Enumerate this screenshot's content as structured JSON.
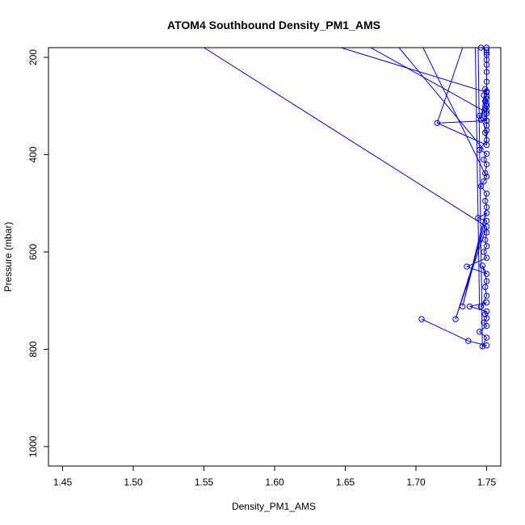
{
  "chart_data": {
    "type": "line",
    "title": "ATOM4 Southbound Density_PM1_AMS",
    "xlabel": "Density_PM1_AMS",
    "ylabel": "Pressure (mbar)",
    "xlim": [
      1.44,
      1.76
    ],
    "ylim": [
      1040,
      180
    ],
    "y_reversed": true,
    "xticks": [
      1.45,
      1.5,
      1.55,
      1.6,
      1.65,
      1.7,
      1.75
    ],
    "xtick_labels": [
      "1.45",
      "1.50",
      "1.55",
      "1.60",
      "1.65",
      "1.70",
      "1.75"
    ],
    "yticks": [
      200,
      400,
      600,
      800,
      1000
    ],
    "ytick_labels": [
      "200",
      "400",
      "600",
      "800",
      "1000"
    ],
    "grid": false,
    "series": [
      {
        "color": "#0000ff",
        "marker": "open-circle",
        "x": [
          1.704,
          1.737,
          1.75,
          1.747,
          1.75,
          1.745,
          1.75,
          1.748,
          1.75,
          1.749,
          1.75,
          1.738,
          1.75,
          1.746,
          1.75,
          1.749,
          1.75,
          1.747,
          1.75,
          1.736,
          1.75,
          1.748,
          1.75,
          1.749,
          1.75,
          1.75,
          1.728,
          1.75,
          1.744,
          1.75,
          1.733,
          1.75,
          1.749,
          1.75,
          1.746,
          1.748,
          1.75,
          1.749,
          1.75,
          1.748,
          1.75,
          1.745,
          1.75,
          1.749,
          1.75,
          1.75,
          1.748,
          1.75,
          1.749,
          1.75,
          1.75,
          1.748,
          1.75,
          1.749,
          1.746,
          1.75,
          1.749,
          1.75,
          1.75,
          1.745,
          1.75,
          1.75,
          1.715,
          1.75,
          1.75,
          1.749,
          1.75,
          1.75,
          1.75,
          1.75,
          1.75,
          1.75,
          1.75,
          1.75,
          1.746,
          1.75
        ],
        "y": [
          738,
          783,
          792,
          794,
          776,
          764,
          752,
          745,
          736,
          728,
          722,
          712,
          704,
          712,
          690,
          672,
          660,
          628,
          645,
          630,
          612,
          600,
          588,
          575,
          560,
          548,
          738,
          536,
          530,
          520,
          712,
          508,
          495,
          480,
          465,
          455,
          445,
          438,
          420,
          410,
          398,
          390,
          370,
          355,
          340,
          330,
          325,
          315,
          305,
          295,
          285,
          278,
          272,
          265,
          328,
          280,
          290,
          300,
          310,
          320,
          350,
          380,
          335,
          330,
          300,
          290,
          270,
          250,
          230,
          215,
          205,
          195,
          190,
          185,
          180,
          180
        ]
      }
    ],
    "offscale_segments": [
      {
        "from": [
          1.75,
          548
        ],
        "to": [
          1.55,
          180
        ]
      },
      {
        "from": [
          1.75,
          272
        ],
        "to": [
          1.647,
          180
        ]
      },
      {
        "from": [
          1.748,
          310
        ],
        "to": [
          1.668,
          180
        ]
      },
      {
        "from": [
          1.748,
          390
        ],
        "to": [
          1.688,
          180
        ]
      },
      {
        "from": [
          1.749,
          440
        ],
        "to": [
          1.705,
          180
        ]
      },
      {
        "from": [
          1.715,
          335
        ],
        "to": [
          1.733,
          180
        ]
      },
      {
        "from": [
          1.745,
          720
        ],
        "to": [
          1.742,
          180
        ]
      },
      {
        "from": [
          1.747,
          800
        ],
        "to": [
          1.744,
          180
        ]
      }
    ]
  }
}
